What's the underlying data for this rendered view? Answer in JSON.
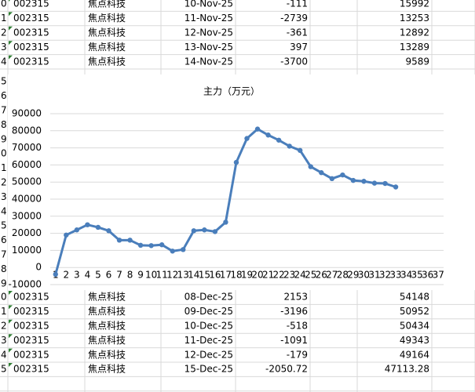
{
  "sheet": {
    "row_numbers_top": [
      "0",
      "1",
      "2",
      "3",
      "4"
    ],
    "rows_top": [
      [
        "002315",
        "焦点科技",
        "10-Nov-25",
        -111,
        15992
      ],
      [
        "002315",
        "焦点科技",
        "11-Nov-25",
        -2739,
        13253
      ],
      [
        "002315",
        "焦点科技",
        "12-Nov-25",
        -361,
        12892
      ],
      [
        "002315",
        "焦点科技",
        "13-Nov-25",
        397,
        13289
      ],
      [
        "002315",
        "焦点科技",
        "14-Nov-25",
        -3700,
        9589
      ]
    ],
    "row_numbers_chart": [
      "5",
      "6",
      "7",
      "8",
      "9",
      "0",
      "1",
      "2",
      "3",
      "4",
      "5",
      "6",
      "7",
      "8",
      "9"
    ],
    "row_numbers_bottom": [
      "0",
      "1",
      "2",
      "3",
      "4",
      "5"
    ],
    "rows_bottom": [
      [
        "002315",
        "焦点科技",
        "08-Dec-25",
        2153,
        54148
      ],
      [
        "002315",
        "焦点科技",
        "09-Dec-25",
        -3196,
        50952
      ],
      [
        "002315",
        "焦点科技",
        "10-Dec-25",
        -518,
        50434
      ],
      [
        "002315",
        "焦点科技",
        "11-Dec-25",
        -1091,
        49343
      ],
      [
        "002315",
        "焦点科技",
        "12-Dec-25",
        -179,
        49164
      ],
      [
        "002315",
        "焦点科技",
        "15-Dec-25",
        -2050.72,
        47113.28
      ]
    ]
  },
  "chart_data": {
    "type": "line",
    "title": "主力（万元）",
    "categories": [
      "1",
      "2",
      "3",
      "4",
      "5",
      "6",
      "7",
      "8",
      "9",
      "10",
      "11",
      "12",
      "13",
      "14",
      "15",
      "16",
      "17",
      "18",
      "19",
      "20",
      "21",
      "22",
      "23",
      "24",
      "25",
      "26",
      "27",
      "28",
      "29",
      "30",
      "31",
      "32",
      "33",
      "34",
      "35",
      "36",
      "37"
    ],
    "values": [
      -4000,
      19000,
      22000,
      25000,
      23500,
      21500,
      16000,
      16000,
      13000,
      12800,
      13300,
      9589,
      10500,
      21500,
      22000,
      21000,
      26500,
      61500,
      75500,
      81000,
      77500,
      74500,
      71000,
      68500,
      59000,
      55500,
      52000,
      54148,
      50952,
      50434,
      49343,
      49164,
      47113.28,
      null,
      null,
      null,
      null
    ],
    "color": "#4a7ebb",
    "ylim": [
      -10000,
      90000
    ],
    "yticks": [
      -10000,
      0,
      10000,
      20000,
      30000,
      40000,
      50000,
      60000,
      70000,
      80000,
      90000
    ],
    "grid": true
  }
}
